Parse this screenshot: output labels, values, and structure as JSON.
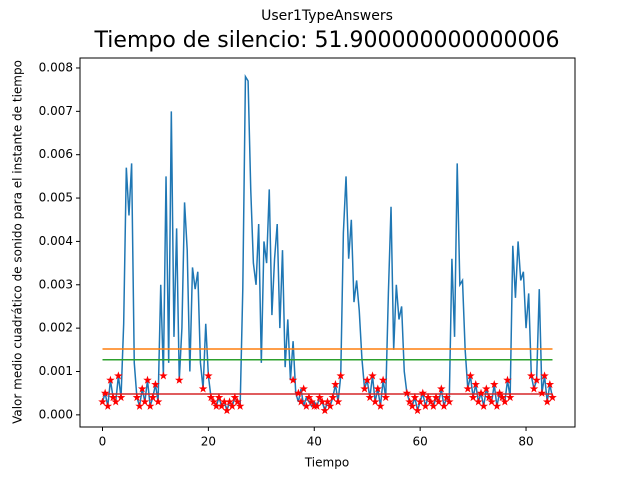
{
  "chart_data": {
    "type": "line",
    "suptitle": "User1TypeAnswers",
    "title": "Tiempo de silencio: 51.900000000000006",
    "xlabel": "Tiempo",
    "ylabel": "Valor medio cuadrático de sonido para el instante de tiempo",
    "xlim": [
      -4.25,
      89.25
    ],
    "ylim": [
      -0.00028,
      0.00823
    ],
    "xticks": [
      0,
      20,
      40,
      60,
      80
    ],
    "yticks": [
      {
        "value": 0,
        "label": "0.000"
      },
      {
        "value": 0.001,
        "label": "0.001"
      },
      {
        "value": 0.002,
        "label": "0.002"
      },
      {
        "value": 0.003,
        "label": "0.003"
      },
      {
        "value": 0.004,
        "label": "0.004"
      },
      {
        "value": 0.005,
        "label": "0.005"
      },
      {
        "value": 0.006,
        "label": "0.006"
      },
      {
        "value": 0.007,
        "label": "0.007"
      },
      {
        "value": 0.008,
        "label": "0.008"
      }
    ],
    "series": [
      {
        "color": "#1f77b4",
        "linestyle": "solid",
        "marker": "none",
        "x": [
          0,
          0.5,
          1,
          1.5,
          2,
          2.5,
          3,
          3.5,
          4,
          4.5,
          5,
          5.5,
          6,
          6.5,
          7,
          7.5,
          8,
          8.5,
          9,
          9.5,
          10,
          10.5,
          11,
          11.5,
          12,
          12.5,
          13,
          13.5,
          14,
          14.5,
          15,
          15.5,
          16,
          16.5,
          17,
          17.5,
          18,
          18.5,
          19,
          19.5,
          20,
          20.5,
          21,
          21.5,
          22,
          22.5,
          23,
          23.5,
          24,
          24.5,
          25,
          25.5,
          26,
          26.5,
          27,
          27.5,
          28,
          28.5,
          29,
          29.5,
          30,
          30.5,
          31,
          31.5,
          32,
          32.5,
          33,
          33.5,
          34,
          34.5,
          35,
          35.5,
          36,
          36.5,
          37,
          37.5,
          38,
          38.5,
          39,
          39.5,
          40,
          40.5,
          41,
          41.5,
          42,
          42.5,
          43,
          43.5,
          44,
          44.5,
          45,
          45.5,
          46,
          46.5,
          47,
          47.5,
          48,
          48.5,
          49,
          49.5,
          50,
          50.5,
          51,
          51.5,
          52,
          52.5,
          53,
          53.5,
          54,
          54.5,
          55,
          55.5,
          56,
          56.5,
          57,
          57.5,
          58,
          58.5,
          59,
          59.5,
          60,
          60.5,
          61,
          61.5,
          62,
          62.5,
          63,
          63.5,
          64,
          64.5,
          65,
          65.5,
          66,
          66.5,
          67,
          67.5,
          68,
          68.5,
          69,
          69.5,
          70,
          70.5,
          71,
          71.5,
          72,
          72.5,
          73,
          73.5,
          74,
          74.5,
          75,
          75.5,
          76,
          76.5,
          77,
          77.5,
          78,
          78.5,
          79,
          79.5,
          80,
          80.5,
          81,
          81.5,
          82,
          82.5,
          83,
          83.5,
          84,
          84.5,
          85
        ],
        "values": [
          0.0003,
          0.0005,
          0.0002,
          0.0008,
          0.0004,
          0.0003,
          0.0009,
          0.0004,
          0.0021,
          0.0057,
          0.0046,
          0.0058,
          0.0012,
          0.0004,
          0.0002,
          0.0006,
          0.0003,
          0.0008,
          0.0002,
          0.0004,
          0.0007,
          0.0003,
          0.003,
          0.0009,
          0.0055,
          0.0012,
          0.007,
          0.0018,
          0.0043,
          0.0008,
          0.002,
          0.0049,
          0.0038,
          0.001,
          0.0034,
          0.0029,
          0.0033,
          0.0012,
          0.0006,
          0.0021,
          0.0009,
          0.0004,
          0.0003,
          0.0002,
          0.0004,
          0.0002,
          0.0003,
          0.0001,
          0.0003,
          0.0002,
          0.0004,
          0.0003,
          0.0002,
          0.0029,
          0.0078,
          0.0077,
          0.0052,
          0.0035,
          0.003,
          0.0044,
          0.0012,
          0.004,
          0.0035,
          0.0052,
          0.0023,
          0.0036,
          0.0044,
          0.002,
          0.0038,
          0.0011,
          0.0022,
          0.0008,
          0.0017,
          0.0005,
          0.0003,
          0.0006,
          0.0002,
          0.0004,
          0.0003,
          0.0002,
          0.0003,
          0.0002,
          0.0004,
          0.0003,
          0.0001,
          0.0003,
          0.0002,
          0.0004,
          0.0007,
          0.0003,
          0.0009,
          0.0042,
          0.0055,
          0.0036,
          0.0045,
          0.0026,
          0.0031,
          0.0024,
          0.0013,
          0.0006,
          0.0008,
          0.0004,
          0.0009,
          0.0003,
          0.0006,
          0.0002,
          0.0008,
          0.0004,
          0.0028,
          0.0048,
          0.0015,
          0.003,
          0.0022,
          0.0025,
          0.001,
          0.0005,
          0.0003,
          0.0002,
          0.0004,
          0.0001,
          0.0003,
          0.0005,
          0.0002,
          0.0004,
          0.0003,
          0.0002,
          0.0004,
          0.0003,
          0.0006,
          0.0002,
          0.0004,
          0.0003,
          0.0036,
          0.0018,
          0.0058,
          0.003,
          0.0031,
          0.0015,
          0.0006,
          0.0009,
          0.0004,
          0.0007,
          0.0003,
          0.0005,
          0.0002,
          0.0006,
          0.0004,
          0.0003,
          0.0007,
          0.0002,
          0.0005,
          0.0004,
          0.0003,
          0.0008,
          0.0004,
          0.0039,
          0.0027,
          0.004,
          0.0031,
          0.0033,
          0.002,
          0.0028,
          0.0009,
          0.0006,
          0.0008,
          0.0029,
          0.0005,
          0.0009,
          0.0003,
          0.0007,
          0.0004
        ]
      },
      {
        "color": "#ff7f0e",
        "linestyle": "solid",
        "marker": "none",
        "x": [
          0,
          85
        ],
        "values": [
          0.00152,
          0.00152
        ]
      },
      {
        "color": "#2ca02c",
        "linestyle": "solid",
        "marker": "none",
        "x": [
          0,
          85
        ],
        "values": [
          0.00127,
          0.00127
        ]
      },
      {
        "color": "#d62728",
        "linestyle": "solid",
        "marker": "none",
        "x": [
          0,
          85
        ],
        "values": [
          0.00048,
          0.00048
        ]
      },
      {
        "color": "#ff0000",
        "linestyle": "none",
        "marker": "star",
        "x": [
          0,
          0.5,
          1,
          1.5,
          2,
          2.5,
          3,
          3.5,
          6.5,
          7,
          7.5,
          8,
          8.5,
          9,
          9.5,
          10,
          10.5,
          11.5,
          14.5,
          19,
          20,
          20.5,
          21,
          21.5,
          22,
          22.5,
          23,
          23.5,
          24,
          24.5,
          25,
          25.5,
          26,
          36,
          37,
          37.5,
          38,
          38.5,
          39,
          39.5,
          40,
          40.5,
          41,
          41.5,
          42,
          42.5,
          43,
          43.5,
          44,
          44.5,
          45,
          49.5,
          50,
          50.5,
          51,
          51.5,
          52,
          52.5,
          53,
          53.5,
          57.5,
          58,
          58.5,
          59,
          59.5,
          60,
          60.5,
          61,
          61.5,
          62,
          62.5,
          63,
          63.5,
          64,
          64.5,
          65,
          65.5,
          69,
          69.5,
          70,
          70.5,
          71,
          71.5,
          72,
          72.5,
          73,
          73.5,
          74,
          74.5,
          75,
          75.5,
          76,
          76.5,
          77,
          81,
          81.5,
          82,
          83,
          83.5,
          84,
          84.5,
          85
        ],
        "values": [
          0.0003,
          0.0005,
          0.0002,
          0.0008,
          0.0004,
          0.0003,
          0.0009,
          0.0004,
          0.0004,
          0.0002,
          0.0006,
          0.0003,
          0.0008,
          0.0002,
          0.0004,
          0.0007,
          0.0003,
          0.0009,
          0.0008,
          0.0006,
          0.0009,
          0.0004,
          0.0003,
          0.0002,
          0.0004,
          0.0002,
          0.0003,
          0.0001,
          0.0003,
          0.0002,
          0.0004,
          0.0003,
          0.0002,
          0.0008,
          0.0005,
          0.0003,
          0.0006,
          0.0002,
          0.0004,
          0.0003,
          0.0002,
          0.0002,
          0.0004,
          0.0003,
          0.0001,
          0.0003,
          0.0002,
          0.0004,
          0.0007,
          0.0003,
          0.0009,
          0.0006,
          0.0008,
          0.0004,
          0.0009,
          0.0003,
          0.0006,
          0.0002,
          0.0008,
          0.0004,
          0.0005,
          0.0003,
          0.0002,
          0.0004,
          0.0001,
          0.0003,
          0.0005,
          0.0002,
          0.0004,
          0.0003,
          0.0002,
          0.0004,
          0.0003,
          0.0006,
          0.0002,
          0.0004,
          0.0003,
          0.0006,
          0.0009,
          0.0004,
          0.0007,
          0.0003,
          0.0005,
          0.0002,
          0.0006,
          0.0004,
          0.0003,
          0.0007,
          0.0002,
          0.0005,
          0.0004,
          0.0003,
          0.0008,
          0.0004,
          0.0009,
          0.0006,
          0.0008,
          0.0005,
          0.0009,
          0.0003,
          0.0007,
          0.0004
        ]
      }
    ]
  }
}
